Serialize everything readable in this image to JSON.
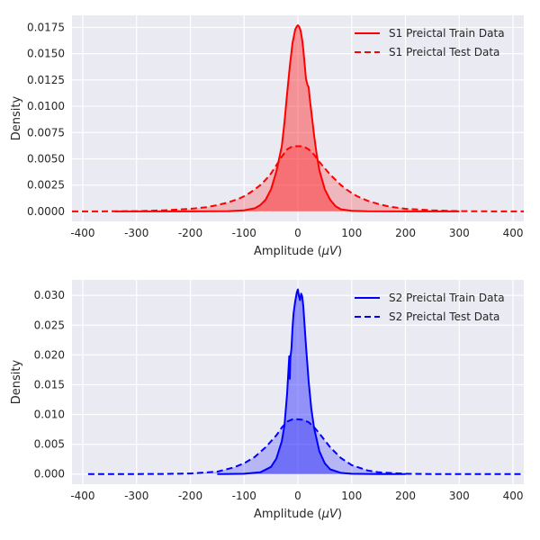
{
  "chart_data": [
    {
      "type": "area",
      "color": "#ff0000",
      "xlabel_prefix": "Amplitude (",
      "xlabel_unit": "μV",
      "xlabel_suffix": ")",
      "ylabel": "Density",
      "xlim": [
        -420,
        420
      ],
      "ylim": [
        -0.00095,
        0.01865
      ],
      "xticks": [
        -400,
        -300,
        -200,
        -100,
        0,
        100,
        200,
        300,
        400
      ],
      "yticks": [
        0.0,
        0.0025,
        0.005,
        0.0075,
        0.01,
        0.0125,
        0.015,
        0.0175
      ],
      "ytick_labels": [
        "0.0000",
        "0.0025",
        "0.0050",
        "0.0075",
        "0.0100",
        "0.0125",
        "0.0150",
        "0.0175"
      ],
      "grid": true,
      "legend_position": "top-right",
      "series": [
        {
          "name": "S1 Preictal Train Data",
          "style": "solid",
          "x": [
            -340,
            -200,
            -130,
            -100,
            -80,
            -70,
            -60,
            -50,
            -40,
            -30,
            -25,
            -20,
            -15,
            -10,
            -5,
            -2,
            0,
            2,
            5,
            8,
            10,
            12,
            15,
            18,
            20,
            22,
            25,
            30,
            35,
            40,
            50,
            60,
            70,
            80,
            100,
            130,
            200,
            300
          ],
          "y": [
            0,
            0,
            3e-05,
            0.0001,
            0.0003,
            0.0006,
            0.0011,
            0.0021,
            0.0038,
            0.0062,
            0.0085,
            0.0112,
            0.0138,
            0.016,
            0.0173,
            0.0176,
            0.0177,
            0.0176,
            0.0172,
            0.0163,
            0.0154,
            0.0143,
            0.0126,
            0.012,
            0.0118,
            0.0108,
            0.0095,
            0.0073,
            0.0054,
            0.0039,
            0.0021,
            0.0011,
            0.0005,
            0.0002,
            5e-05,
            1e-05,
            0,
            0
          ]
        },
        {
          "name": "S1 Preictal Test Data",
          "style": "dashed",
          "x": [
            -420,
            -350,
            -300,
            -250,
            -200,
            -170,
            -150,
            -130,
            -110,
            -100,
            -90,
            -80,
            -70,
            -60,
            -50,
            -40,
            -30,
            -20,
            -10,
            0,
            10,
            20,
            30,
            40,
            50,
            60,
            70,
            80,
            90,
            100,
            110,
            130,
            150,
            170,
            200,
            250,
            300,
            350,
            400,
            420
          ],
          "y": [
            0,
            1e-05,
            3e-05,
            0.0001,
            0.00024,
            0.0004,
            0.0006,
            0.00085,
            0.0012,
            0.00145,
            0.00175,
            0.0021,
            0.0025,
            0.003,
            0.0036,
            0.0044,
            0.0052,
            0.0059,
            0.0062,
            0.0062,
            0.0062,
            0.0059,
            0.0054,
            0.0047,
            0.0041,
            0.0035,
            0.003,
            0.0025,
            0.0021,
            0.00175,
            0.00145,
            0.001,
            0.0007,
            0.00045,
            0.00025,
            0.0001,
            3e-05,
            1e-05,
            0,
            0
          ]
        }
      ]
    },
    {
      "type": "area",
      "color": "#0000ff",
      "xlabel_prefix": "Amplitude (",
      "xlabel_unit": "μV",
      "xlabel_suffix": ")",
      "ylabel": "Density",
      "xlim": [
        -420,
        420
      ],
      "ylim": [
        -0.0017,
        0.0326
      ],
      "xticks": [
        -400,
        -300,
        -200,
        -100,
        0,
        100,
        200,
        300,
        400
      ],
      "yticks": [
        0.0,
        0.005,
        0.01,
        0.015,
        0.02,
        0.025,
        0.03
      ],
      "ytick_labels": [
        "0.000",
        "0.005",
        "0.010",
        "0.015",
        "0.020",
        "0.025",
        "0.030"
      ],
      "grid": true,
      "legend_position": "top-right",
      "series": [
        {
          "name": "S2 Preictal Train Data",
          "style": "solid",
          "x": [
            -150,
            -100,
            -70,
            -50,
            -40,
            -30,
            -25,
            -20,
            -16,
            -15,
            -14,
            -12,
            -10,
            -8,
            -5,
            -2,
            0,
            2,
            4,
            6,
            8,
            10,
            12,
            15,
            20,
            25,
            30,
            40,
            50,
            60,
            80,
            100,
            150,
            200
          ],
          "y": [
            0,
            5e-05,
            0.0003,
            0.0012,
            0.0026,
            0.0055,
            0.0082,
            0.0135,
            0.0198,
            0.016,
            0.0195,
            0.021,
            0.0245,
            0.027,
            0.029,
            0.0305,
            0.031,
            0.0298,
            0.0292,
            0.0303,
            0.0298,
            0.0282,
            0.0255,
            0.0215,
            0.0155,
            0.011,
            0.0078,
            0.0038,
            0.0018,
            0.0008,
            0.0002,
            5e-05,
            0,
            0
          ]
        },
        {
          "name": "S2 Preictal Test Data",
          "style": "dashed",
          "x": [
            -390,
            -300,
            -250,
            -200,
            -150,
            -120,
            -100,
            -80,
            -60,
            -40,
            -30,
            -20,
            -10,
            0,
            10,
            20,
            30,
            40,
            60,
            80,
            100,
            130,
            150,
            200,
            250,
            300,
            350,
            420
          ],
          "y": [
            0,
            0,
            2e-05,
            0.0001,
            0.0004,
            0.0011,
            0.0018,
            0.0029,
            0.0045,
            0.0065,
            0.0078,
            0.0088,
            0.0092,
            0.0092,
            0.0091,
            0.0087,
            0.0079,
            0.0068,
            0.0045,
            0.0027,
            0.0015,
            0.0006,
            0.0003,
            5e-05,
            1e-05,
            0,
            0,
            0
          ]
        }
      ]
    }
  ]
}
